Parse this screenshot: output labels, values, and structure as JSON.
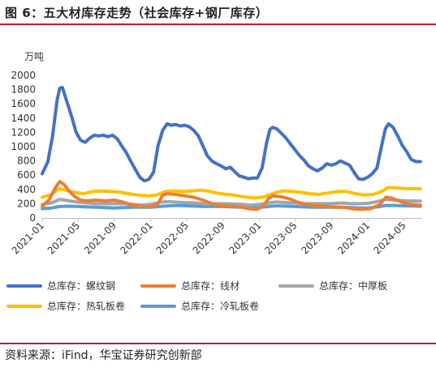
{
  "figure": {
    "title": "图 6：五大材库存走势（社会库存+钢厂库存）",
    "source": "资料来源：iFind，华宝证券研究创新部"
  },
  "chart_data": {
    "type": "line",
    "ylabel": "万吨",
    "ylim": [
      0,
      2000
    ],
    "yticks": [
      "0",
      "200",
      "400",
      "600",
      "800",
      "1000",
      "1200",
      "1400",
      "1600",
      "1800",
      "2000"
    ],
    "xlim": [
      "2021-01",
      "2024-07"
    ],
    "xticks": [
      "2021-01",
      "2021-05",
      "2021-09",
      "2022-01",
      "2022-05",
      "2022-09",
      "2023-01",
      "2023-05",
      "2023-09",
      "2024-01",
      "2024-05"
    ],
    "grid": false,
    "legend": "bottom",
    "series": [
      {
        "name": "总库存：螺纹钢",
        "color": "#4472c4",
        "points": [
          [
            "2021-01-01",
            620
          ],
          [
            "2021-01-20",
            790
          ],
          [
            "2021-02-05",
            1150
          ],
          [
            "2021-02-20",
            1650
          ],
          [
            "2021-03-01",
            1820
          ],
          [
            "2021-03-10",
            1830
          ],
          [
            "2021-03-25",
            1630
          ],
          [
            "2021-04-10",
            1420
          ],
          [
            "2021-04-25",
            1200
          ],
          [
            "2021-05-10",
            1090
          ],
          [
            "2021-05-25",
            1060
          ],
          [
            "2021-06-10",
            1120
          ],
          [
            "2021-06-25",
            1160
          ],
          [
            "2021-07-10",
            1150
          ],
          [
            "2021-07-25",
            1160
          ],
          [
            "2021-08-10",
            1140
          ],
          [
            "2021-08-25",
            1160
          ],
          [
            "2021-09-10",
            1110
          ],
          [
            "2021-09-25",
            1010
          ],
          [
            "2021-10-10",
            920
          ],
          [
            "2021-10-25",
            800
          ],
          [
            "2021-11-10",
            680
          ],
          [
            "2021-11-25",
            570
          ],
          [
            "2021-12-10",
            520
          ],
          [
            "2021-12-25",
            540
          ],
          [
            "2022-01-10",
            640
          ],
          [
            "2022-01-25",
            1010
          ],
          [
            "2022-02-10",
            1230
          ],
          [
            "2022-02-25",
            1320
          ],
          [
            "2022-03-10",
            1300
          ],
          [
            "2022-03-25",
            1310
          ],
          [
            "2022-04-10",
            1290
          ],
          [
            "2022-04-25",
            1300
          ],
          [
            "2022-05-10",
            1280
          ],
          [
            "2022-05-25",
            1230
          ],
          [
            "2022-06-10",
            1150
          ],
          [
            "2022-06-25",
            1010
          ],
          [
            "2022-07-10",
            870
          ],
          [
            "2022-07-25",
            800
          ],
          [
            "2022-08-10",
            760
          ],
          [
            "2022-08-25",
            730
          ],
          [
            "2022-09-10",
            690
          ],
          [
            "2022-09-25",
            710
          ],
          [
            "2022-10-10",
            650
          ],
          [
            "2022-10-25",
            590
          ],
          [
            "2022-11-10",
            570
          ],
          [
            "2022-11-25",
            550
          ],
          [
            "2022-12-10",
            560
          ],
          [
            "2022-12-25",
            560
          ],
          [
            "2023-01-10",
            700
          ],
          [
            "2023-01-25",
            1050
          ],
          [
            "2023-02-05",
            1240
          ],
          [
            "2023-02-15",
            1270
          ],
          [
            "2023-02-28",
            1250
          ],
          [
            "2023-03-15",
            1190
          ],
          [
            "2023-03-31",
            1120
          ],
          [
            "2023-04-15",
            1040
          ],
          [
            "2023-04-30",
            960
          ],
          [
            "2023-05-15",
            880
          ],
          [
            "2023-05-31",
            810
          ],
          [
            "2023-06-15",
            730
          ],
          [
            "2023-06-30",
            690
          ],
          [
            "2023-07-15",
            660
          ],
          [
            "2023-07-31",
            700
          ],
          [
            "2023-08-15",
            760
          ],
          [
            "2023-08-31",
            740
          ],
          [
            "2023-09-15",
            760
          ],
          [
            "2023-09-30",
            800
          ],
          [
            "2023-10-15",
            770
          ],
          [
            "2023-10-31",
            740
          ],
          [
            "2023-11-15",
            640
          ],
          [
            "2023-11-30",
            550
          ],
          [
            "2023-12-15",
            540
          ],
          [
            "2023-12-31",
            570
          ],
          [
            "2024-01-15",
            620
          ],
          [
            "2024-01-31",
            700
          ],
          [
            "2024-02-15",
            1000
          ],
          [
            "2024-02-28",
            1250
          ],
          [
            "2024-03-10",
            1320
          ],
          [
            "2024-03-25",
            1270
          ],
          [
            "2024-04-10",
            1150
          ],
          [
            "2024-04-25",
            1020
          ],
          [
            "2024-05-10",
            930
          ],
          [
            "2024-05-25",
            820
          ],
          [
            "2024-06-10",
            790
          ],
          [
            "2024-06-25",
            790
          ]
        ]
      },
      {
        "name": "总库存：线材",
        "color": "#ed7d31",
        "points": [
          [
            "2021-01-01",
            160
          ],
          [
            "2021-01-25",
            260
          ],
          [
            "2021-02-15",
            430
          ],
          [
            "2021-03-01",
            510
          ],
          [
            "2021-03-15",
            470
          ],
          [
            "2021-04-01",
            380
          ],
          [
            "2021-04-20",
            300
          ],
          [
            "2021-05-10",
            250
          ],
          [
            "2021-06-01",
            240
          ],
          [
            "2021-07-01",
            250
          ],
          [
            "2021-08-01",
            240
          ],
          [
            "2021-09-01",
            250
          ],
          [
            "2021-10-01",
            220
          ],
          [
            "2021-11-01",
            180
          ],
          [
            "2021-12-01",
            160
          ],
          [
            "2022-01-01",
            160
          ],
          [
            "2022-01-25",
            200
          ],
          [
            "2022-02-10",
            320
          ],
          [
            "2022-02-25",
            340
          ],
          [
            "2022-03-25",
            330
          ],
          [
            "2022-04-25",
            310
          ],
          [
            "2022-05-25",
            290
          ],
          [
            "2022-06-25",
            250
          ],
          [
            "2022-07-25",
            200
          ],
          [
            "2022-08-25",
            170
          ],
          [
            "2022-09-25",
            160
          ],
          [
            "2022-10-25",
            160
          ],
          [
            "2022-11-25",
            130
          ],
          [
            "2022-12-25",
            120
          ],
          [
            "2023-01-15",
            170
          ],
          [
            "2023-02-01",
            280
          ],
          [
            "2023-02-15",
            310
          ],
          [
            "2023-03-10",
            300
          ],
          [
            "2023-04-10",
            270
          ],
          [
            "2023-05-10",
            220
          ],
          [
            "2023-06-10",
            190
          ],
          [
            "2023-07-10",
            170
          ],
          [
            "2023-08-10",
            160
          ],
          [
            "2023-09-10",
            150
          ],
          [
            "2023-10-10",
            150
          ],
          [
            "2023-11-10",
            130
          ],
          [
            "2023-12-10",
            120
          ],
          [
            "2024-01-10",
            130
          ],
          [
            "2024-02-10",
            190
          ],
          [
            "2024-03-01",
            290
          ],
          [
            "2024-03-20",
            280
          ],
          [
            "2024-04-20",
            230
          ],
          [
            "2024-05-20",
            190
          ],
          [
            "2024-06-25",
            180
          ]
        ]
      },
      {
        "name": "总库存：中厚板",
        "color": "#a5a5a5",
        "points": [
          [
            "2021-01-01",
            190
          ],
          [
            "2021-02-01",
            210
          ],
          [
            "2021-03-01",
            260
          ],
          [
            "2021-04-01",
            240
          ],
          [
            "2021-05-01",
            220
          ],
          [
            "2021-06-01",
            210
          ],
          [
            "2021-07-01",
            200
          ],
          [
            "2021-08-01",
            200
          ],
          [
            "2021-09-01",
            200
          ],
          [
            "2021-10-01",
            200
          ],
          [
            "2021-11-01",
            190
          ],
          [
            "2021-12-01",
            180
          ],
          [
            "2022-01-01",
            190
          ],
          [
            "2022-02-01",
            220
          ],
          [
            "2022-03-01",
            230
          ],
          [
            "2022-04-01",
            220
          ],
          [
            "2022-05-01",
            215
          ],
          [
            "2022-06-01",
            210
          ],
          [
            "2022-07-01",
            200
          ],
          [
            "2022-08-01",
            200
          ],
          [
            "2022-09-01",
            200
          ],
          [
            "2022-10-01",
            195
          ],
          [
            "2022-11-01",
            190
          ],
          [
            "2022-12-01",
            180
          ],
          [
            "2023-01-01",
            190
          ],
          [
            "2023-02-01",
            210
          ],
          [
            "2023-03-01",
            225
          ],
          [
            "2023-04-01",
            215
          ],
          [
            "2023-05-01",
            210
          ],
          [
            "2023-06-01",
            200
          ],
          [
            "2023-07-01",
            200
          ],
          [
            "2023-08-01",
            200
          ],
          [
            "2023-09-01",
            200
          ],
          [
            "2023-10-01",
            210
          ],
          [
            "2023-11-01",
            200
          ],
          [
            "2023-12-01",
            200
          ],
          [
            "2024-01-01",
            205
          ],
          [
            "2024-02-01",
            230
          ],
          [
            "2024-03-01",
            260
          ],
          [
            "2024-04-01",
            250
          ],
          [
            "2024-05-01",
            240
          ],
          [
            "2024-06-25",
            235
          ]
        ]
      },
      {
        "name": "总库存：热轧板卷",
        "color": "#ffc000",
        "points": [
          [
            "2021-01-01",
            290
          ],
          [
            "2021-02-01",
            330
          ],
          [
            "2021-02-25",
            410
          ],
          [
            "2021-03-20",
            390
          ],
          [
            "2021-04-20",
            360
          ],
          [
            "2021-05-20",
            340
          ],
          [
            "2021-06-20",
            370
          ],
          [
            "2021-07-20",
            380
          ],
          [
            "2021-08-20",
            370
          ],
          [
            "2021-09-20",
            360
          ],
          [
            "2021-10-20",
            340
          ],
          [
            "2021-11-20",
            320
          ],
          [
            "2021-12-20",
            310
          ],
          [
            "2022-01-20",
            320
          ],
          [
            "2022-02-20",
            370
          ],
          [
            "2022-03-20",
            380
          ],
          [
            "2022-04-20",
            370
          ],
          [
            "2022-05-20",
            380
          ],
          [
            "2022-06-20",
            390
          ],
          [
            "2022-07-20",
            370
          ],
          [
            "2022-08-20",
            340
          ],
          [
            "2022-09-20",
            330
          ],
          [
            "2022-10-20",
            310
          ],
          [
            "2022-11-20",
            290
          ],
          [
            "2022-12-20",
            280
          ],
          [
            "2023-01-20",
            300
          ],
          [
            "2023-02-20",
            350
          ],
          [
            "2023-03-20",
            380
          ],
          [
            "2023-04-20",
            370
          ],
          [
            "2023-05-20",
            360
          ],
          [
            "2023-06-20",
            340
          ],
          [
            "2023-07-20",
            330
          ],
          [
            "2023-08-20",
            350
          ],
          [
            "2023-09-20",
            370
          ],
          [
            "2023-10-20",
            370
          ],
          [
            "2023-11-20",
            340
          ],
          [
            "2023-12-20",
            320
          ],
          [
            "2024-01-20",
            330
          ],
          [
            "2024-02-20",
            380
          ],
          [
            "2024-03-10",
            430
          ],
          [
            "2024-04-10",
            420
          ],
          [
            "2024-05-10",
            410
          ],
          [
            "2024-06-25",
            410
          ]
        ]
      },
      {
        "name": "总库存：冷轧板卷",
        "color": "#5b9bd5",
        "points": [
          [
            "2021-01-01",
            130
          ],
          [
            "2021-02-01",
            140
          ],
          [
            "2021-03-01",
            160
          ],
          [
            "2021-04-01",
            165
          ],
          [
            "2021-05-01",
            160
          ],
          [
            "2021-06-01",
            155
          ],
          [
            "2021-07-01",
            150
          ],
          [
            "2021-08-01",
            145
          ],
          [
            "2021-09-01",
            140
          ],
          [
            "2021-10-01",
            145
          ],
          [
            "2021-11-01",
            150
          ],
          [
            "2021-12-01",
            150
          ],
          [
            "2022-01-01",
            150
          ],
          [
            "2022-02-01",
            160
          ],
          [
            "2022-03-01",
            170
          ],
          [
            "2022-04-01",
            175
          ],
          [
            "2022-05-01",
            170
          ],
          [
            "2022-06-01",
            165
          ],
          [
            "2022-07-01",
            160
          ],
          [
            "2022-08-01",
            160
          ],
          [
            "2022-09-01",
            160
          ],
          [
            "2022-10-01",
            155
          ],
          [
            "2022-11-01",
            150
          ],
          [
            "2022-12-01",
            145
          ],
          [
            "2023-01-01",
            145
          ],
          [
            "2023-02-01",
            160
          ],
          [
            "2023-03-01",
            170
          ],
          [
            "2023-04-01",
            165
          ],
          [
            "2023-05-01",
            160
          ],
          [
            "2023-06-01",
            155
          ],
          [
            "2023-07-01",
            150
          ],
          [
            "2023-08-01",
            150
          ],
          [
            "2023-09-01",
            150
          ],
          [
            "2023-10-01",
            150
          ],
          [
            "2023-11-01",
            145
          ],
          [
            "2023-12-01",
            140
          ],
          [
            "2024-01-01",
            140
          ],
          [
            "2024-02-01",
            155
          ],
          [
            "2024-03-01",
            175
          ],
          [
            "2024-04-01",
            175
          ],
          [
            "2024-05-01",
            170
          ],
          [
            "2024-06-25",
            165
          ]
        ]
      }
    ]
  }
}
